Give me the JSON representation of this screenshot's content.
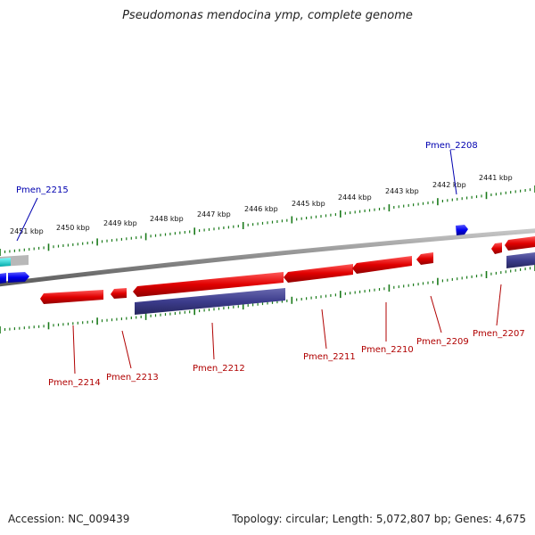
{
  "title": "Pseudomonas mendocina ymp, complete genome",
  "footer": {
    "accession": "Accession: NC_009439",
    "summary": "Topology: circular; Length: 5,072,807 bp; Genes: 4,675"
  },
  "scale_labels": [
    "2451 kbp",
    "2450 kbp",
    "2449 kbp",
    "2448 kbp",
    "2447 kbp",
    "2446 kbp",
    "2445 kbp",
    "2444 kbp",
    "2443 kbp",
    "2442 kbp",
    "2441 kbp"
  ],
  "gene_labels": {
    "forward": [
      "Pmen_2215",
      "Pmen_2208"
    ],
    "reverse": [
      "Pmen_2214",
      "Pmen_2213",
      "Pmen_2212",
      "Pmen_2211",
      "Pmen_2210",
      "Pmen_2209",
      "Pmen_2207"
    ]
  },
  "colors": {
    "cds": "#ee0000",
    "forward_cds": "#0000ee",
    "rna_cyan": "#00cccc",
    "match_bar": "#3c3c8c",
    "backbone": "#777777",
    "tick": "#1a7a1a"
  }
}
